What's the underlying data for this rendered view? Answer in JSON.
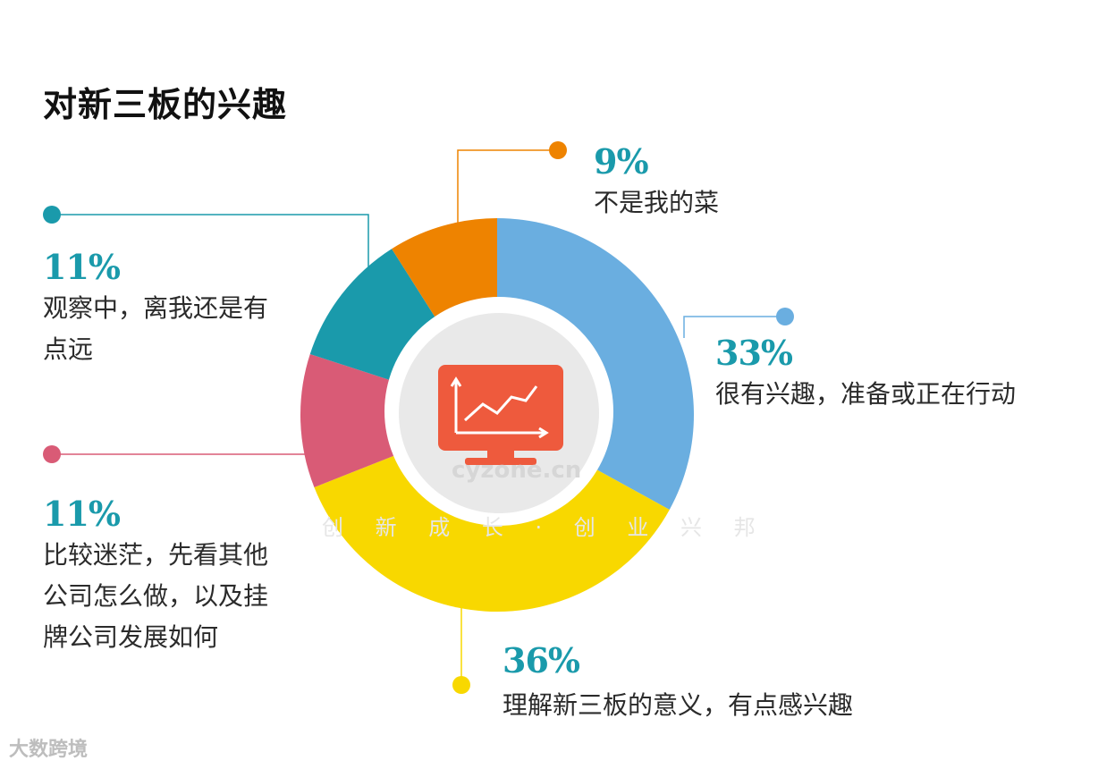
{
  "title": "对新三板的兴趣",
  "chart_data": {
    "type": "pie",
    "title": "对新三板的兴趣",
    "slices": [
      {
        "label": "很有兴趣，准备或正在行动",
        "value": 33,
        "pct_label": "33%",
        "color": "#6aaee0"
      },
      {
        "label": "理解新三板的意义，有点感兴趣",
        "value": 36,
        "pct_label": "36%",
        "color": "#f8d800"
      },
      {
        "label": "比较迷茫，先看其他公司怎么做，以及挂牌公司发展如何",
        "value": 11,
        "pct_label": "11%",
        "color": "#d95b76"
      },
      {
        "label": "观察中，离我还是有点远",
        "value": 11,
        "pct_label": "11%",
        "color": "#1a9aab"
      },
      {
        "label": "不是我的菜",
        "value": 9,
        "pct_label": "9%",
        "color": "#ee8300"
      }
    ]
  },
  "labels": {
    "s0": {
      "pct": "33%",
      "desc": "很有兴趣，准备或正在行动"
    },
    "s1": {
      "pct": "36%",
      "desc": "理解新三板的意义，有点感兴趣"
    },
    "s2": {
      "pct": "11%",
      "desc_lines": [
        "比较迷茫，先看其他",
        "公司怎么做，以及挂",
        "牌公司发展如何"
      ]
    },
    "s3": {
      "pct": "11%",
      "desc_lines": [
        "观察中，离我还是有",
        "点远"
      ]
    },
    "s4": {
      "pct": "9%",
      "desc": "不是我的菜"
    }
  },
  "watermark": {
    "site": "cyzone.cn",
    "slogan": "创 新 成 长 · 创 业 兴 邦"
  },
  "logo": "大数跨境",
  "center_icon": "monitor-chart-icon"
}
